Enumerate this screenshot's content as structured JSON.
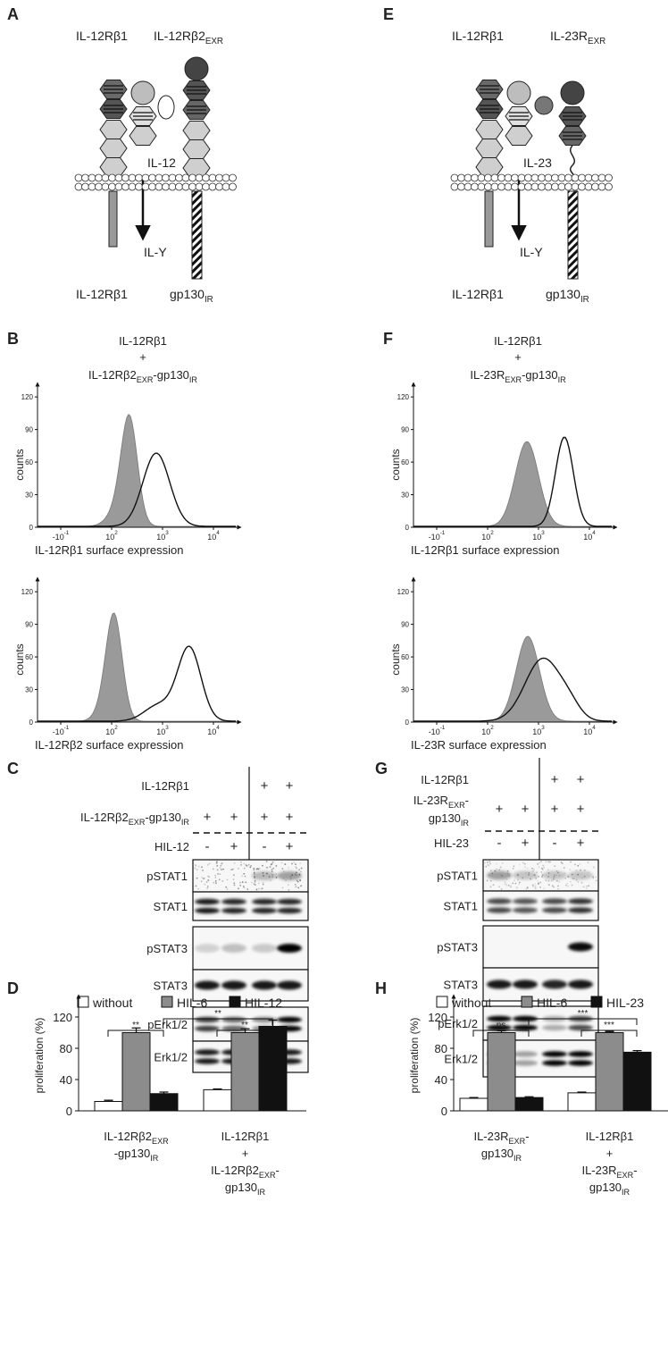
{
  "figure": {
    "A": {
      "label": "A",
      "top": [
        "IL-12Rβ1",
        [
          "IL-12Rβ2",
          {
            "sub": "EXR"
          }
        ]
      ],
      "ligand": "IL-12",
      "product": "IL-Y",
      "bottom": [
        "IL-12Rβ1",
        [
          "gp130",
          {
            "sub": "IR"
          }
        ]
      ]
    },
    "E": {
      "label": "E",
      "top": [
        "IL-12Rβ1",
        [
          "IL-23R",
          {
            "sub": "EXR"
          }
        ]
      ],
      "ligand": "IL-23",
      "product": "IL-Y",
      "bottom": [
        "IL-12Rβ1",
        [
          "gp130",
          {
            "sub": "IR"
          }
        ]
      ]
    },
    "B": {
      "label": "B",
      "title": [
        "IL-12Rβ1",
        "+",
        [
          "IL-12Rβ2",
          {
            "sub": "EXR"
          },
          "-gp130",
          {
            "sub": "IR"
          }
        ]
      ],
      "histograms": [
        {
          "ylabel": "counts",
          "ylim": [
            0,
            130
          ],
          "yticks": [
            0,
            30,
            60,
            90,
            120
          ],
          "xticks": [
            [
              "-10",
              {
                "sup": "-1"
              }
            ],
            [
              "10",
              {
                "sup": "2"
              }
            ],
            [
              "10",
              {
                "sup": "3"
              }
            ],
            [
              "10",
              {
                "sup": "4"
              }
            ]
          ],
          "xlabel": "IL-12Rβ1 surface expression"
        },
        {
          "ylabel": "counts",
          "ylim": [
            0,
            130
          ],
          "yticks": [
            0,
            30,
            60,
            90,
            120
          ],
          "xticks": [
            [
              "-10",
              {
                "sup": "-1"
              }
            ],
            [
              "10",
              {
                "sup": "2"
              }
            ],
            [
              "10",
              {
                "sup": "3"
              }
            ],
            [
              "10",
              {
                "sup": "4"
              }
            ]
          ],
          "xlabel": "IL-12Rβ2 surface expression"
        }
      ]
    },
    "F": {
      "label": "F",
      "title": [
        "IL-12Rβ1",
        "+",
        [
          "IL-23R",
          {
            "sub": "EXR"
          },
          "-gp130",
          {
            "sub": "IR"
          }
        ]
      ],
      "histograms": [
        {
          "ylabel": "counts",
          "ylim": [
            0,
            130
          ],
          "yticks": [
            0,
            30,
            60,
            90,
            120
          ],
          "xticks": [
            [
              "-10",
              {
                "sup": "-1"
              }
            ],
            [
              "10",
              {
                "sup": "2"
              }
            ],
            [
              "10",
              {
                "sup": "3"
              }
            ],
            [
              "10",
              {
                "sup": "4"
              }
            ]
          ],
          "xlabel": "IL-12Rβ1 surface expression"
        },
        {
          "ylabel": "counts",
          "ylim": [
            0,
            130
          ],
          "yticks": [
            0,
            30,
            60,
            90,
            120
          ],
          "xticks": [
            [
              "-10",
              {
                "sup": "-1"
              }
            ],
            [
              "10",
              {
                "sup": "2"
              }
            ],
            [
              "10",
              {
                "sup": "3"
              }
            ],
            [
              "10",
              {
                "sup": "4"
              }
            ]
          ],
          "xlabel": "IL-23R surface expression"
        }
      ]
    },
    "C": {
      "label": "C",
      "conditions": [
        {
          "lines": [
            "IL-12Rβ1"
          ],
          "signs": [
            null,
            null,
            "+",
            "+"
          ]
        },
        {
          "lines": [
            [
              "IL-12Rβ2",
              {
                "sub": "EXR"
              },
              "-gp130",
              {
                "sub": "IR"
              }
            ]
          ],
          "signs": [
            "+",
            "+",
            "+",
            "+"
          ]
        },
        {
          "lines": [
            "HIL-12"
          ],
          "signs": [
            "-",
            "+",
            "-",
            "+"
          ]
        }
      ],
      "blots": [
        "pSTAT1",
        "STAT1",
        "pSTAT3",
        "STAT3",
        "pErk1/2",
        "Erk1/2"
      ]
    },
    "G": {
      "label": "G",
      "conditions": [
        {
          "lines": [
            "IL-12Rβ1"
          ],
          "signs": [
            null,
            null,
            "+",
            "+"
          ]
        },
        {
          "lines": [
            [
              "IL-23R",
              {
                "sub": "EXR"
              },
              "-"
            ],
            [
              "gp130",
              {
                "sub": "IR"
              }
            ]
          ],
          "signs": [
            "+",
            "+",
            "+",
            "+"
          ]
        },
        {
          "lines": [
            "HIL-23"
          ],
          "signs": [
            "-",
            "+",
            "-",
            "+"
          ]
        }
      ],
      "blots": [
        "pSTAT1",
        "STAT1",
        "pSTAT3",
        "STAT3",
        "pErk1/2",
        "Erk1/2"
      ]
    }
  },
  "chart_data": [
    {
      "type": "bar",
      "label": "D",
      "ylabel": "proliferation (%)",
      "ylim": [
        0,
        140
      ],
      "yticks": [
        0,
        40,
        80,
        120
      ],
      "categories": [
        [
          [
            "IL-12Rβ2",
            {
              "sub": "EXR"
            }
          ],
          [
            "-gp130",
            {
              "sub": "IR"
            }
          ]
        ],
        [
          "IL-12Rβ1",
          "+",
          [
            "IL-12Rβ2",
            {
              "sub": "EXR"
            },
            "-"
          ],
          [
            "gp130",
            {
              "sub": "IR"
            }
          ]
        ]
      ],
      "series": [
        {
          "name": "without",
          "color": "#ffffff",
          "values": [
            12,
            27
          ],
          "errors": [
            1.5,
            1
          ]
        },
        {
          "name": "HIL-6",
          "color": "#8c8c8c",
          "values": [
            100,
            100
          ],
          "errors": [
            6,
            5
          ]
        },
        {
          "name": "HIL-12",
          "color": "#111111",
          "values": [
            22,
            108
          ],
          "errors": [
            2,
            8
          ]
        }
      ],
      "significance": [
        "**",
        "**",
        "**"
      ]
    },
    {
      "type": "bar",
      "label": "H",
      "ylabel": "proliferation (%)",
      "ylim": [
        0,
        140
      ],
      "yticks": [
        0,
        40,
        80,
        120
      ],
      "categories": [
        [
          [
            "IL-23R",
            {
              "sub": "EXR"
            },
            "-"
          ],
          [
            "gp130",
            {
              "sub": "IR"
            }
          ]
        ],
        [
          "IL-12Rβ1",
          "+",
          [
            "IL-23R",
            {
              "sub": "EXR"
            },
            "-"
          ],
          [
            "gp130",
            {
              "sub": "IR"
            }
          ]
        ]
      ],
      "series": [
        {
          "name": "without",
          "color": "#ffffff",
          "values": [
            16,
            23
          ],
          "errors": [
            1,
            1
          ]
        },
        {
          "name": "HIL-6",
          "color": "#8c8c8c",
          "values": [
            100,
            100
          ],
          "errors": [
            2.5,
            1.5
          ]
        },
        {
          "name": "HIL-23",
          "color": "#111111",
          "values": [
            17,
            75
          ],
          "errors": [
            1,
            2
          ]
        }
      ],
      "significance": [
        "ns",
        "***",
        "***"
      ]
    }
  ]
}
